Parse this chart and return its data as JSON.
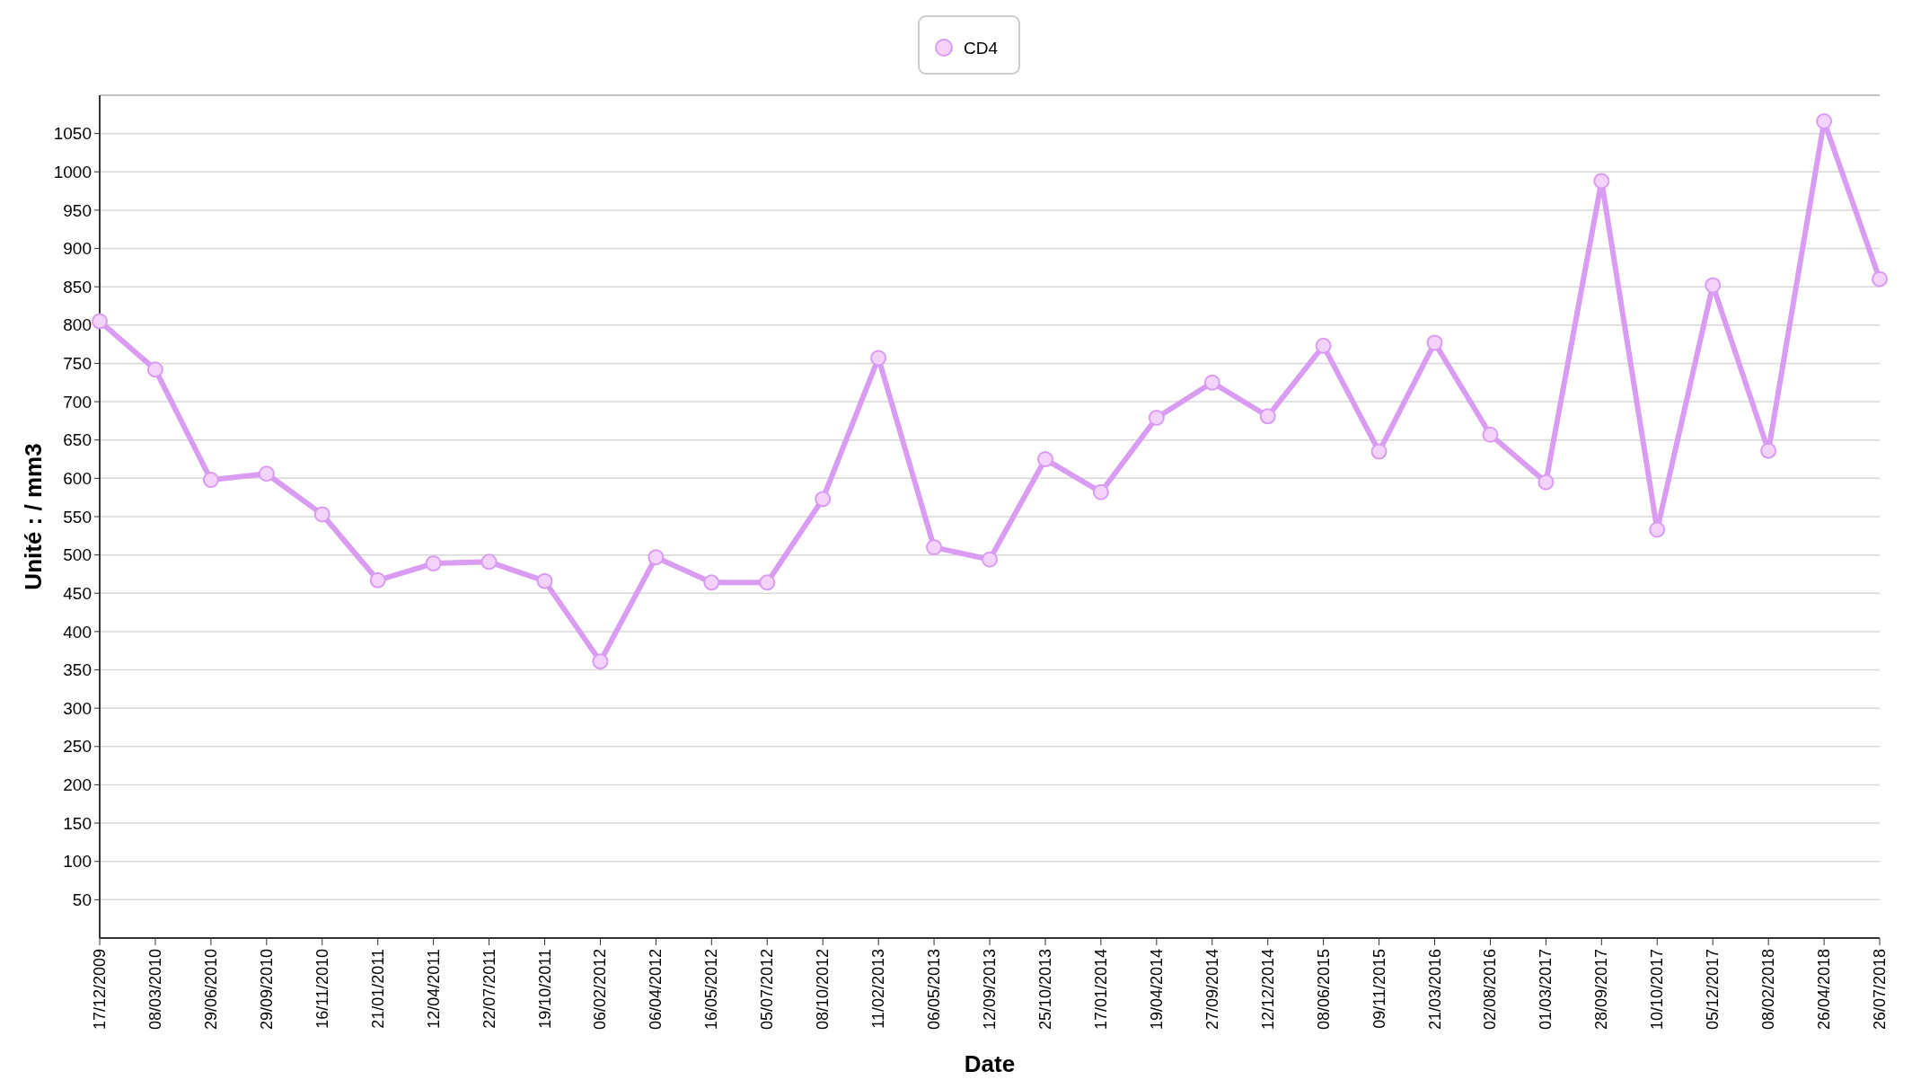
{
  "chart_data": {
    "type": "line",
    "xlabel": "Date",
    "ylabel": "Unité : / mm3",
    "categories": [
      "17/12/2009",
      "08/03/2010",
      "29/06/2010",
      "29/09/2010",
      "16/11/2010",
      "21/01/2011",
      "12/04/2011",
      "22/07/2011",
      "19/10/2011",
      "06/02/2012",
      "06/04/2012",
      "16/05/2012",
      "05/07/2012",
      "08/10/2012",
      "11/02/2013",
      "06/05/2013",
      "12/09/2013",
      "25/10/2013",
      "17/01/2014",
      "19/04/2014",
      "27/09/2014",
      "12/12/2014",
      "08/06/2015",
      "09/11/2015",
      "21/03/2016",
      "02/08/2016",
      "01/03/2017",
      "28/09/2017",
      "10/10/2017",
      "05/12/2017",
      "08/02/2018",
      "26/04/2018",
      "26/07/2018"
    ],
    "series": [
      {
        "name": "CD4",
        "color": "#d99cf2",
        "values": [
          805,
          742,
          598,
          606,
          553,
          467,
          489,
          491,
          466,
          361,
          497,
          464,
          464,
          573,
          757,
          510,
          494,
          625,
          582,
          679,
          725,
          681,
          773,
          635,
          777,
          657,
          595,
          988,
          533,
          852,
          636,
          1066,
          860
        ]
      }
    ],
    "ylim": [
      0,
      1100
    ],
    "yticks": [
      50,
      100,
      150,
      200,
      250,
      300,
      350,
      400,
      450,
      500,
      550,
      600,
      650,
      700,
      750,
      800,
      850,
      900,
      950,
      1000,
      1050
    ],
    "grid": "y",
    "legend": "top",
    "marker": "circle",
    "line_style": "solid"
  }
}
